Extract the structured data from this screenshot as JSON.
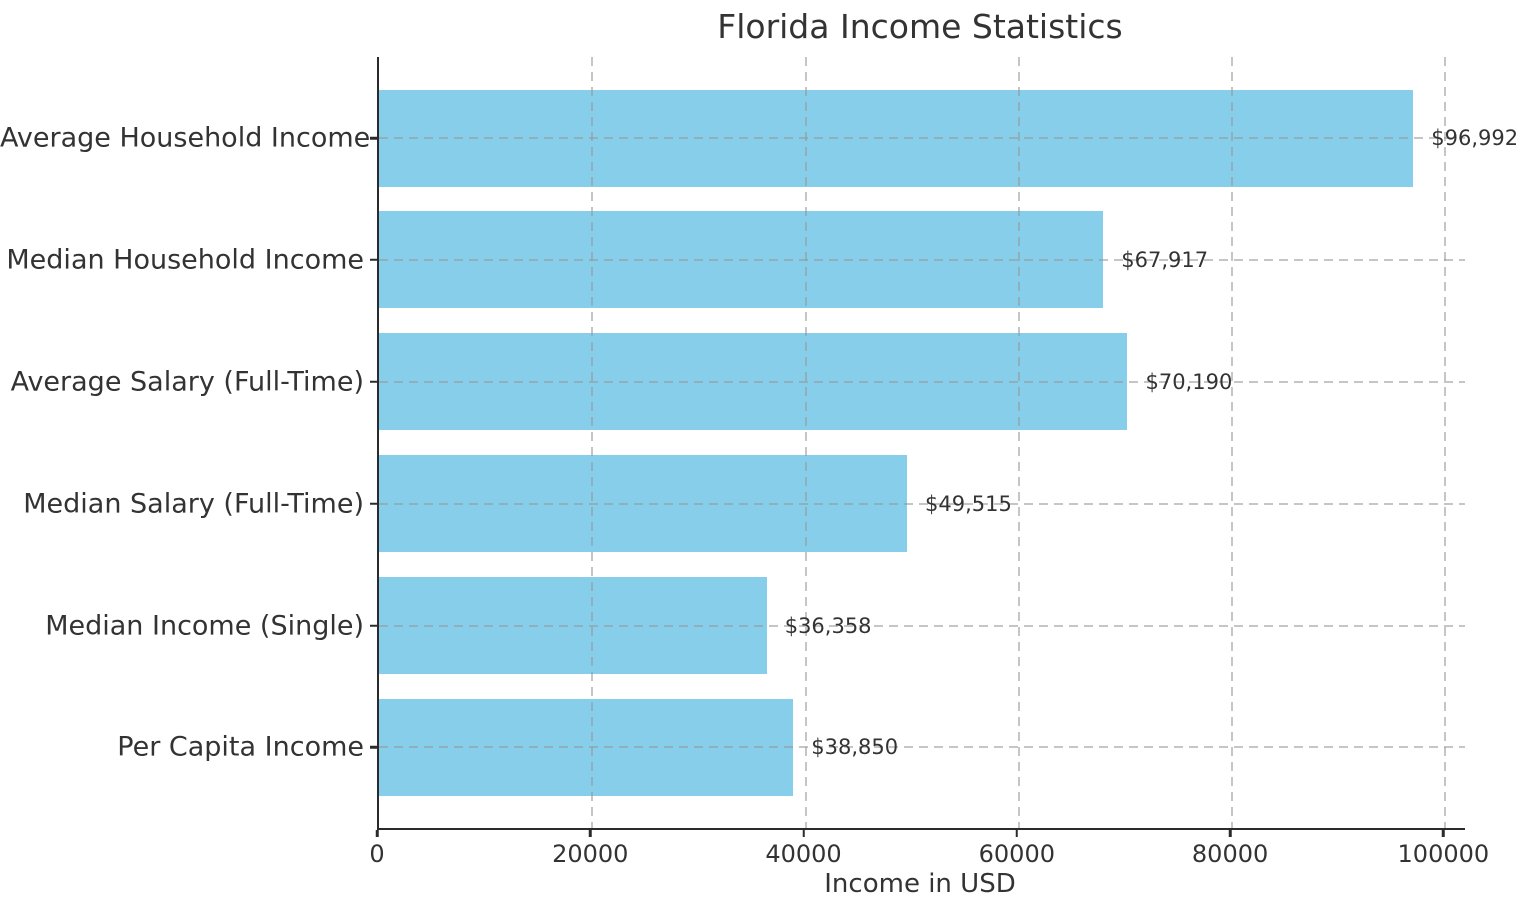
{
  "chart_data": {
    "type": "bar",
    "orientation": "horizontal",
    "title": "Florida Income Statistics",
    "xlabel": "Income in USD",
    "ylabel": "",
    "categories": [
      "Average Household Income",
      "Median Household Income",
      "Average Salary (Full-Time)",
      "Median Salary (Full-Time)",
      "Median Income (Single)",
      "Per Capita Income"
    ],
    "values": [
      96992,
      67917,
      70190,
      49515,
      36358,
      38850
    ],
    "value_labels": [
      "$96,992",
      "$67,917",
      "$70,190",
      "$49,515",
      "$36,358",
      "$38,850"
    ],
    "x_ticks": [
      0,
      20000,
      40000,
      60000,
      80000,
      100000
    ],
    "x_tick_labels": [
      "0",
      "20000",
      "40000",
      "60000",
      "80000",
      "100000"
    ],
    "xlim": [
      0,
      101842
    ],
    "grid": true,
    "grid_style": "dashed",
    "legend": "none",
    "bar_color": "#87CEEB",
    "text_color": "#333333",
    "axis_color": "#2b2b2b",
    "grid_color": "#c8c8c8",
    "background_color": "#ffffff"
  }
}
